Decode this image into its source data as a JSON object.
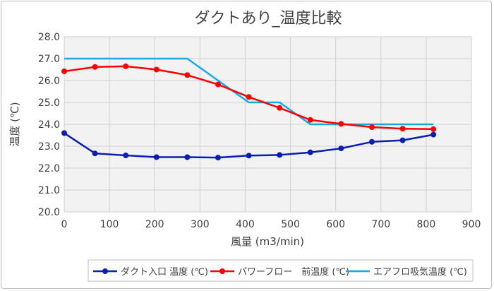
{
  "chart_data": {
    "type": "line",
    "title": "ダクトあり_温度比較",
    "xlabel": "風量 (m3/min)",
    "ylabel": "温度 (℃)",
    "xlim": [
      0,
      900
    ],
    "ylim": [
      20.0,
      28.0
    ],
    "x_ticks": [
      "0",
      "100",
      "200",
      "300",
      "400",
      "500",
      "600",
      "700",
      "800",
      "900"
    ],
    "y_ticks": [
      "20.0",
      "21.0",
      "22.0",
      "23.0",
      "24.0",
      "25.0",
      "26.0",
      "27.0",
      "28.0"
    ],
    "grid": true,
    "legend_position": "bottom",
    "plot_background": "#f2f2f2",
    "series": [
      {
        "name": "ダクト入口 温度 (℃)",
        "color": "#0a1fb0",
        "marker": "circle",
        "points": [
          [
            0,
            23.6
          ],
          [
            68,
            22.67
          ],
          [
            136,
            22.58
          ],
          [
            204,
            22.5
          ],
          [
            272,
            22.5
          ],
          [
            340,
            22.48
          ],
          [
            408,
            22.57
          ],
          [
            476,
            22.6
          ],
          [
            544,
            22.72
          ],
          [
            612,
            22.9
          ],
          [
            680,
            23.2
          ],
          [
            748,
            23.27
          ],
          [
            816,
            23.53
          ]
        ]
      },
      {
        "name": "パワーフロー　前温度 (℃)",
        "color": "#ff0000",
        "marker": "circle",
        "points": [
          [
            0,
            26.42
          ],
          [
            68,
            26.62
          ],
          [
            136,
            26.65
          ],
          [
            204,
            26.5
          ],
          [
            272,
            26.25
          ],
          [
            340,
            25.82
          ],
          [
            408,
            25.25
          ],
          [
            476,
            24.75
          ],
          [
            544,
            24.2
          ],
          [
            612,
            24.02
          ],
          [
            680,
            23.87
          ],
          [
            748,
            23.8
          ],
          [
            816,
            23.78
          ]
        ]
      },
      {
        "name": "エアフロ吸気温度 (℃)",
        "color": "#16a9e6",
        "marker": "none",
        "points": [
          [
            0,
            27.0
          ],
          [
            68,
            27.0
          ],
          [
            136,
            27.0
          ],
          [
            204,
            27.0
          ],
          [
            272,
            27.0
          ],
          [
            340,
            26.0
          ],
          [
            408,
            25.0
          ],
          [
            476,
            25.0
          ],
          [
            544,
            24.0
          ],
          [
            612,
            24.0
          ],
          [
            680,
            24.0
          ],
          [
            748,
            24.0
          ],
          [
            816,
            24.0
          ]
        ]
      }
    ]
  }
}
